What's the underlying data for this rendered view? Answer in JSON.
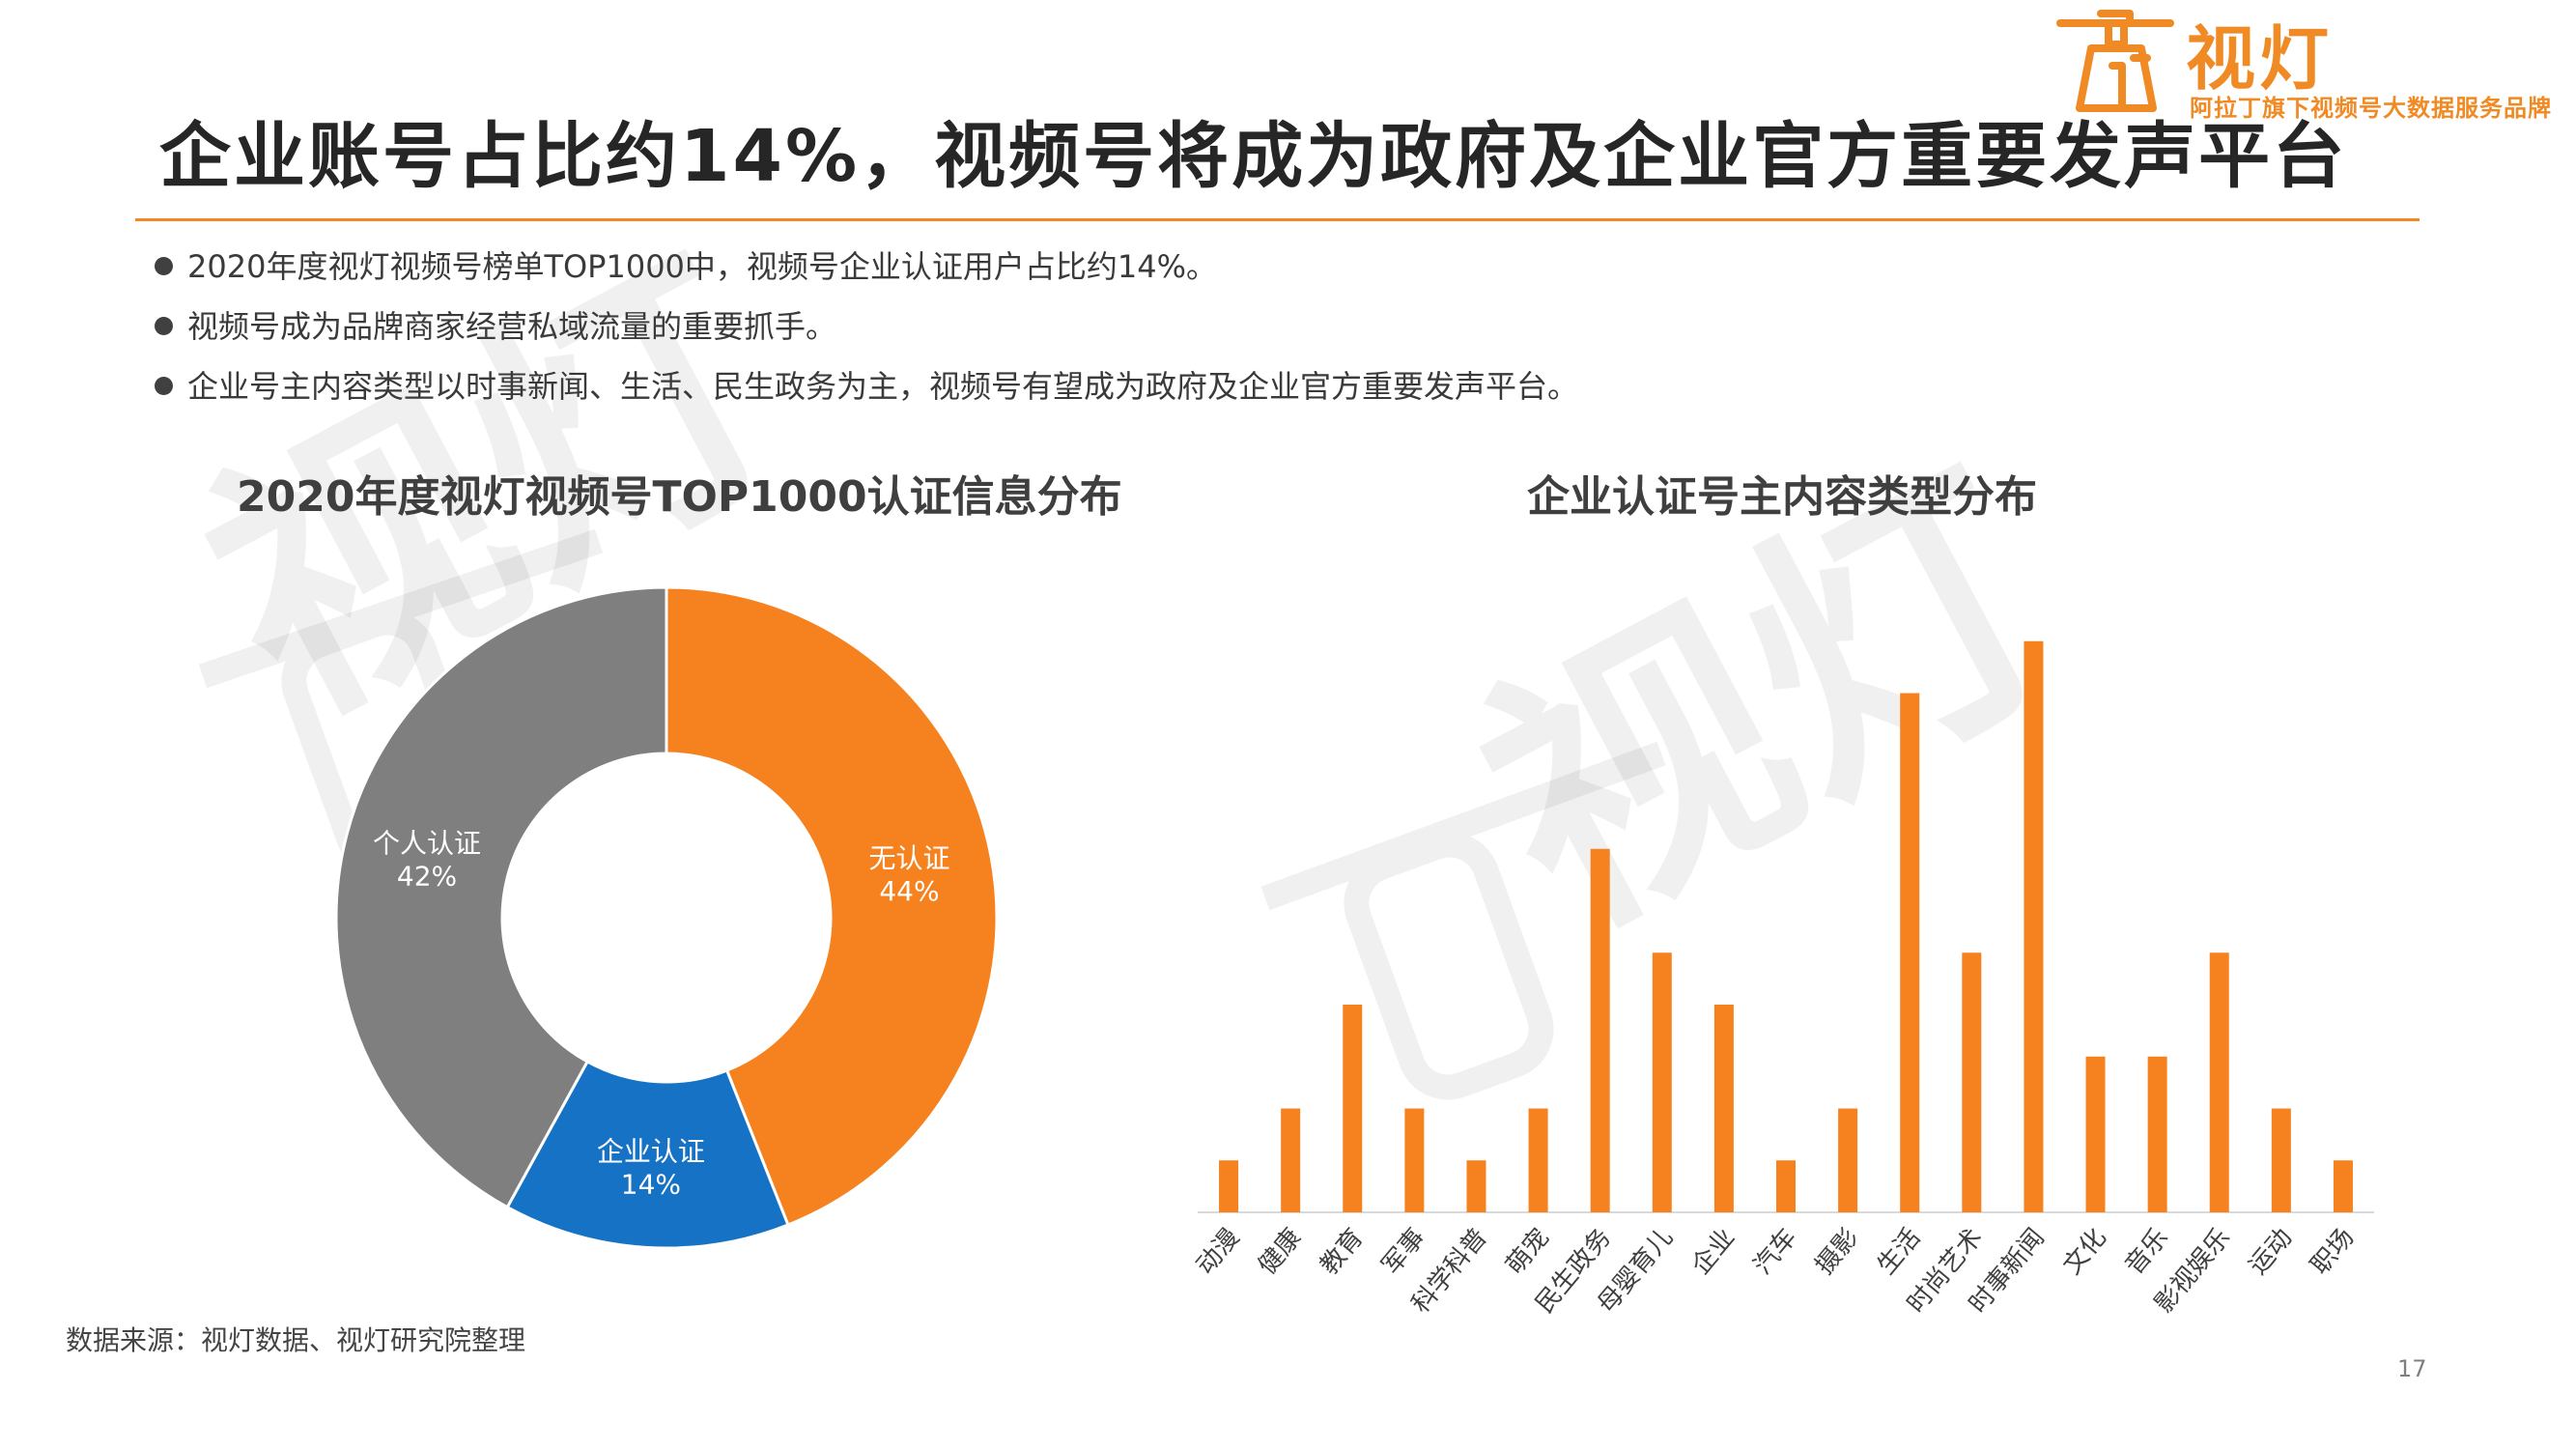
{
  "title": "企业账号占比约14%，视频号将成为政府及企业官方重要发声平台",
  "logo": {
    "name": "视灯",
    "subtitle": "阿拉丁旗下视频号大数据服务品牌"
  },
  "bullets": [
    "2020年度视灯视频号榜单TOP1000中，视频号企业认证用户占比约14%。",
    "视频号成为品牌商家经营私域流量的重要抓手。",
    "企业号主内容类型以时事新闻、生活、民生政务为主，视频号有望成为政府及企业官方重要发声平台。"
  ],
  "watermark_text": "视灯",
  "chart_data": [
    {
      "type": "pie",
      "title": "2020年度视灯视频号TOP1000认证信息分布",
      "variant": "donut",
      "slices": [
        {
          "label": "无认证",
          "value": 44,
          "display": "44%",
          "color": "#F5821F"
        },
        {
          "label": "企业认证",
          "value": 14,
          "display": "14%",
          "color": "#1672C4"
        },
        {
          "label": "个人认证",
          "value": 42,
          "display": "42%",
          "color": "#7F7F7F"
        }
      ]
    },
    {
      "type": "bar",
      "title": "企业认证号主内容类型分布",
      "xlabel": "",
      "ylabel": "",
      "ylim": [
        0,
        12
      ],
      "color": "#F5821F",
      "grid": false,
      "categories": [
        "动漫",
        "健康",
        "教育",
        "军事",
        "科学科普",
        "萌宠",
        "民生政务",
        "母婴育儿",
        "企业",
        "汽车",
        "摄影",
        "生活",
        "时尚艺术",
        "时事新闻",
        "文化",
        "音乐",
        "影视娱乐",
        "运动",
        "职场"
      ],
      "values": [
        1,
        2,
        4,
        2,
        1,
        2,
        7,
        5,
        4,
        1,
        2,
        10,
        5,
        11,
        3,
        3,
        5,
        2,
        1
      ]
    }
  ],
  "footer": {
    "source": "数据来源：视灯数据、视灯研究院整理",
    "page": "17"
  }
}
